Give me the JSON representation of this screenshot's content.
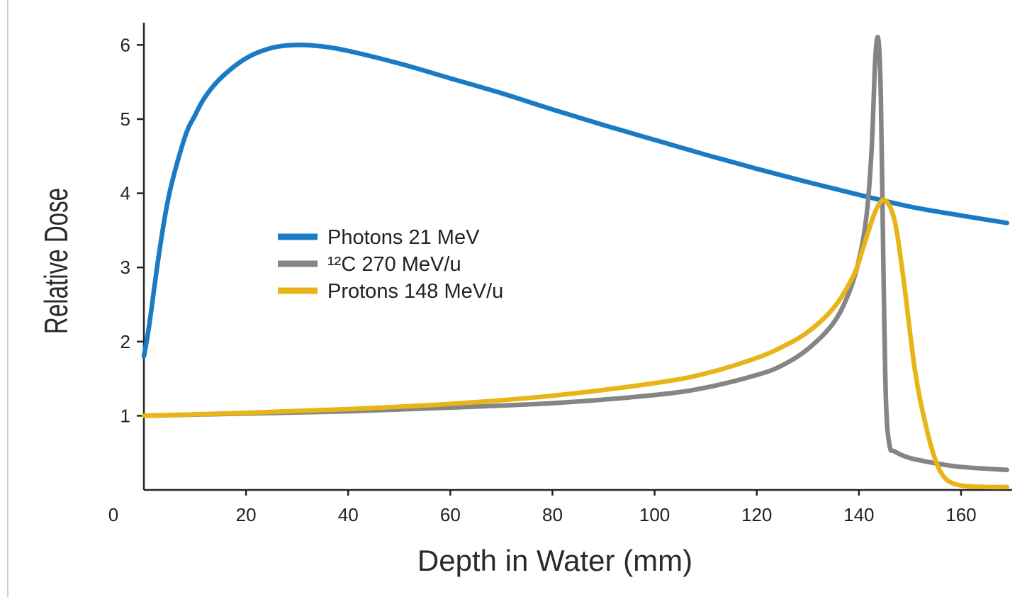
{
  "chart_data": {
    "type": "line",
    "xlabel": "Depth in Water (mm)",
    "ylabel": "Relative Dose",
    "xlim": [
      0,
      170
    ],
    "ylim": [
      0,
      6.3
    ],
    "xticks": [
      0,
      20,
      40,
      60,
      80,
      100,
      120,
      140,
      160
    ],
    "yticks": [
      1,
      2,
      3,
      4,
      5,
      6
    ],
    "grid": false,
    "legend_position": "center-left",
    "series": [
      {
        "name": "Photons 21 MeV",
        "color": "#1a7bc4",
        "x": [
          0,
          1,
          3,
          5,
          8,
          10,
          12,
          15,
          20,
          25,
          30,
          35,
          40,
          50,
          60,
          70,
          80,
          90,
          100,
          110,
          120,
          130,
          140,
          150,
          160,
          169
        ],
        "y": [
          1.8,
          2.2,
          3.2,
          4.0,
          4.75,
          5.05,
          5.3,
          5.55,
          5.82,
          5.96,
          6.0,
          5.98,
          5.92,
          5.75,
          5.55,
          5.35,
          5.13,
          4.92,
          4.72,
          4.52,
          4.33,
          4.15,
          3.98,
          3.82,
          3.7,
          3.6
        ]
      },
      {
        "name": "¹²C 270 MeV/u",
        "color": "#858585",
        "x": [
          0,
          20,
          40,
          60,
          80,
          100,
          110,
          120,
          125,
          130,
          135,
          138,
          140,
          141.5,
          142.5,
          143.2,
          143.8,
          144.3,
          144.8,
          145.3,
          146,
          147,
          150,
          155,
          160,
          169
        ],
        "y": [
          1.0,
          1.03,
          1.06,
          1.11,
          1.17,
          1.28,
          1.38,
          1.55,
          1.68,
          1.9,
          2.25,
          2.65,
          3.1,
          3.7,
          4.6,
          5.8,
          6.08,
          5.3,
          3.0,
          1.2,
          0.6,
          0.52,
          0.43,
          0.36,
          0.31,
          0.27
        ]
      },
      {
        "name": "Protons 148 MeV/u",
        "color": "#e8b417",
        "x": [
          0,
          20,
          40,
          60,
          80,
          100,
          110,
          120,
          125,
          130,
          135,
          139,
          141,
          143,
          144.5,
          145.5,
          146.5,
          147.5,
          149,
          151,
          153,
          155,
          157,
          160,
          165,
          169
        ],
        "y": [
          1.0,
          1.04,
          1.09,
          1.16,
          1.27,
          1.44,
          1.57,
          1.78,
          1.93,
          2.13,
          2.45,
          2.9,
          3.3,
          3.72,
          3.9,
          3.88,
          3.75,
          3.45,
          2.7,
          1.6,
          0.9,
          0.4,
          0.15,
          0.06,
          0.04,
          0.04
        ]
      }
    ]
  }
}
